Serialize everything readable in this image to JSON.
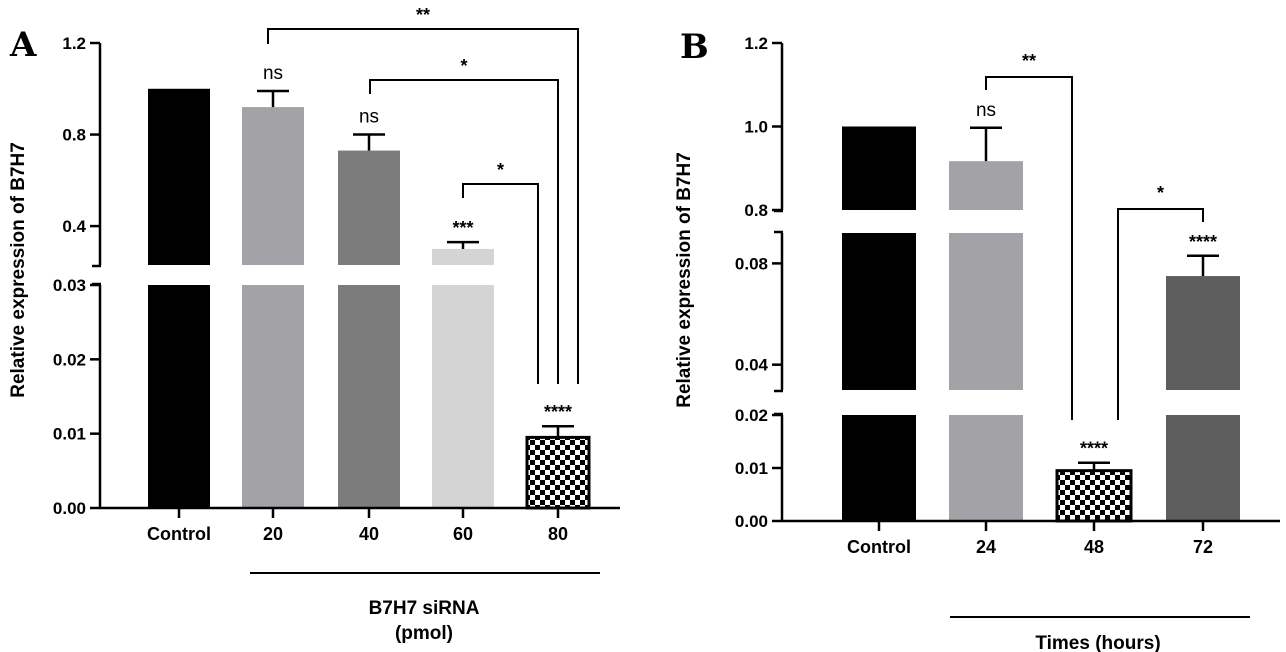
{
  "chart_data": [
    {
      "panel": "A",
      "type": "bar",
      "title": "",
      "ylabel": "Relative expression of B7H7",
      "xlabel_line1": "B7H7 siRNA",
      "xlabel_line2": "(pmol)",
      "categories": [
        "Control",
        "20",
        "40",
        "60",
        "80"
      ],
      "values": [
        1.0,
        0.92,
        0.73,
        0.3,
        0.0095
      ],
      "errors": [
        0,
        0.07,
        0.07,
        0.03,
        0.0015
      ],
      "bar_colors": [
        "#000000",
        "#a3a3a7",
        "#7c7c7c",
        "#d4d4d4",
        "checker"
      ],
      "axis_segments": [
        {
          "range": [
            0.0,
            0.03
          ],
          "ticks": [
            "0.00",
            "0.01",
            "0.02",
            "0.03"
          ]
        },
        {
          "range": [
            0.23,
            1.2
          ],
          "ticks": [
            "0.4",
            "0.8",
            "1.2"
          ]
        }
      ],
      "bar_labels": [
        "",
        "ns",
        "ns",
        "***",
        "****"
      ],
      "brackets": [
        {
          "from": "20",
          "to": "80",
          "label": "**"
        },
        {
          "from": "40",
          "to": "80",
          "label": "*"
        },
        {
          "from": "60",
          "to": "80",
          "label": "*"
        }
      ]
    },
    {
      "panel": "B",
      "type": "bar",
      "title": "",
      "ylabel": "Relative expression of B7H7",
      "xlabel": "Times (hours)",
      "categories": [
        "Control",
        "24",
        "48",
        "72"
      ],
      "values": [
        1.0,
        0.917,
        0.0095,
        0.075
      ],
      "errors": [
        0,
        0.08,
        0.0015,
        0.008
      ],
      "bar_colors": [
        "#000000",
        "#a3a3a7",
        "checker",
        "#5e5e5e"
      ],
      "axis_segments": [
        {
          "range": [
            0.0,
            0.02
          ],
          "ticks": [
            "0.00",
            "0.01",
            "0.02"
          ]
        },
        {
          "range": [
            0.03,
            0.092
          ],
          "ticks": [
            "0.04",
            "0.08"
          ]
        },
        {
          "range": [
            0.8,
            1.2
          ],
          "ticks": [
            "0.8",
            "1.0",
            "1.2"
          ]
        }
      ],
      "bar_labels": [
        "",
        "ns",
        "****",
        "****"
      ],
      "brackets": [
        {
          "from": "24",
          "to": "48",
          "label": "**"
        },
        {
          "from": "48",
          "to": "72",
          "label": "*"
        }
      ]
    }
  ]
}
